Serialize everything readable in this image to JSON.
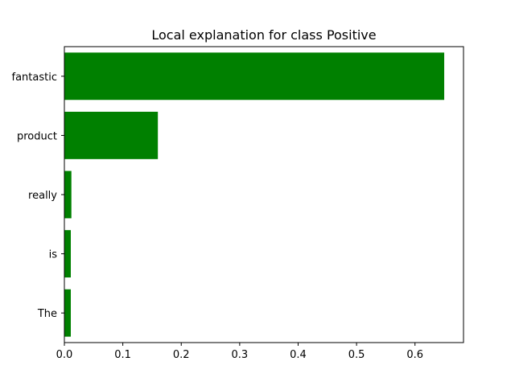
{
  "chart_data": {
    "type": "bar",
    "orientation": "horizontal",
    "title": "Local explanation for class Positive",
    "xlabel": "",
    "ylabel": "",
    "categories": [
      "The",
      "is",
      "really",
      "product",
      "fantastic"
    ],
    "values": [
      0.011,
      0.011,
      0.012,
      0.16,
      0.65
    ],
    "bar_color": "#008000",
    "xlim": [
      0,
      0.683
    ],
    "xticks": [
      0.0,
      0.1,
      0.2,
      0.3,
      0.4,
      0.5,
      0.6
    ],
    "xtick_labels": [
      "0.0",
      "0.1",
      "0.2",
      "0.3",
      "0.4",
      "0.5",
      "0.6"
    ],
    "grid": false,
    "legend": "none"
  }
}
